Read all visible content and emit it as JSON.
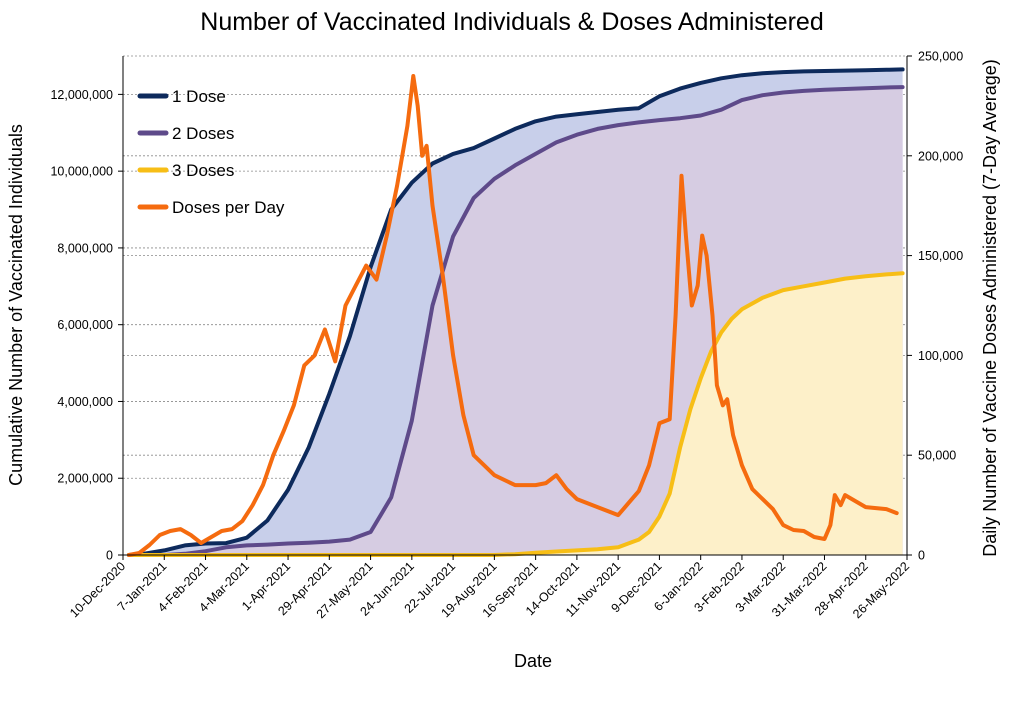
{
  "chart_data": {
    "type": "area",
    "title": "Number of Vaccinated Individuals & Doses Administered",
    "xlabel": "Date",
    "ylabel": "Cumulative Number of Vaccinated Individuals",
    "y2label": "Daily Number of Vaccine Doses Administered (7-Day Average)",
    "xlim": [
      "2020-12-10",
      "2022-05-26"
    ],
    "ylim": [
      0,
      13000000
    ],
    "y2lim": [
      0,
      250000
    ],
    "x_ticks": [
      "10-Dec-2020",
      "7-Jan-2021",
      "4-Feb-2021",
      "4-Mar-2021",
      "1-Apr-2021",
      "29-Apr-2021",
      "27-May-2021",
      "24-Jun-2021",
      "22-Jul-2021",
      "19-Aug-2021",
      "16-Sep-2021",
      "14-Oct-2021",
      "11-Nov-2021",
      "9-Dec-2021",
      "6-Jan-2022",
      "3-Feb-2022",
      "3-Mar-2022",
      "31-Mar-2022",
      "28-Apr-2022",
      "26-May-2022"
    ],
    "y_ticks": [
      "0",
      "2,000,000",
      "4,000,000",
      "6,000,000",
      "8,000,000",
      "10,000,000",
      "12,000,000"
    ],
    "y2_ticks": [
      "0",
      "50,000",
      "100,000",
      "150,000",
      "200,000",
      "250,000"
    ],
    "grid": "dashed horizontal",
    "legend_position": "top-left",
    "series": [
      {
        "name": "1 Dose",
        "axis": "left",
        "color": "#0d2a5c",
        "fill": "#c8cfea",
        "points": [
          [
            "2020-12-14",
            0
          ],
          [
            "2020-12-24",
            30000
          ],
          [
            "2021-01-07",
            120000
          ],
          [
            "2021-01-21",
            250000
          ],
          [
            "2021-02-04",
            300000
          ],
          [
            "2021-02-18",
            310000
          ],
          [
            "2021-03-04",
            450000
          ],
          [
            "2021-03-18",
            900000
          ],
          [
            "2021-04-01",
            1700000
          ],
          [
            "2021-04-15",
            2800000
          ],
          [
            "2021-04-29",
            4200000
          ],
          [
            "2021-05-13",
            5700000
          ],
          [
            "2021-05-27",
            7500000
          ],
          [
            "2021-06-10",
            9000000
          ],
          [
            "2021-06-24",
            9700000
          ],
          [
            "2021-07-08",
            10200000
          ],
          [
            "2021-07-22",
            10450000
          ],
          [
            "2021-08-05",
            10600000
          ],
          [
            "2021-08-19",
            10850000
          ],
          [
            "2021-09-02",
            11100000
          ],
          [
            "2021-09-16",
            11300000
          ],
          [
            "2021-09-30",
            11420000
          ],
          [
            "2021-10-14",
            11480000
          ],
          [
            "2021-10-28",
            11540000
          ],
          [
            "2021-11-11",
            11600000
          ],
          [
            "2021-11-25",
            11640000
          ],
          [
            "2021-12-09",
            11950000
          ],
          [
            "2021-12-23",
            12150000
          ],
          [
            "2022-01-06",
            12300000
          ],
          [
            "2022-01-20",
            12420000
          ],
          [
            "2022-02-03",
            12500000
          ],
          [
            "2022-02-17",
            12550000
          ],
          [
            "2022-03-03",
            12580000
          ],
          [
            "2022-03-17",
            12600000
          ],
          [
            "2022-03-31",
            12610000
          ],
          [
            "2022-04-14",
            12620000
          ],
          [
            "2022-04-28",
            12630000
          ],
          [
            "2022-05-12",
            12640000
          ],
          [
            "2022-05-23",
            12650000
          ]
        ]
      },
      {
        "name": "2 Doses",
        "axis": "left",
        "color": "#5e4a8a",
        "fill": "#d6cce2",
        "points": [
          [
            "2020-12-14",
            0
          ],
          [
            "2021-01-07",
            0
          ],
          [
            "2021-01-21",
            30000
          ],
          [
            "2021-02-04",
            100000
          ],
          [
            "2021-02-18",
            200000
          ],
          [
            "2021-03-04",
            250000
          ],
          [
            "2021-03-18",
            270000
          ],
          [
            "2021-04-01",
            300000
          ],
          [
            "2021-04-15",
            320000
          ],
          [
            "2021-04-29",
            350000
          ],
          [
            "2021-05-13",
            400000
          ],
          [
            "2021-05-27",
            600000
          ],
          [
            "2021-06-10",
            1500000
          ],
          [
            "2021-06-24",
            3500000
          ],
          [
            "2021-07-08",
            6500000
          ],
          [
            "2021-07-22",
            8300000
          ],
          [
            "2021-08-05",
            9300000
          ],
          [
            "2021-08-19",
            9800000
          ],
          [
            "2021-09-02",
            10150000
          ],
          [
            "2021-09-16",
            10450000
          ],
          [
            "2021-09-30",
            10750000
          ],
          [
            "2021-10-14",
            10950000
          ],
          [
            "2021-10-28",
            11100000
          ],
          [
            "2021-11-11",
            11200000
          ],
          [
            "2021-11-25",
            11270000
          ],
          [
            "2021-12-09",
            11330000
          ],
          [
            "2021-12-23",
            11380000
          ],
          [
            "2022-01-06",
            11450000
          ],
          [
            "2022-01-20",
            11600000
          ],
          [
            "2022-02-03",
            11850000
          ],
          [
            "2022-02-17",
            11980000
          ],
          [
            "2022-03-03",
            12050000
          ],
          [
            "2022-03-17",
            12090000
          ],
          [
            "2022-03-31",
            12120000
          ],
          [
            "2022-04-14",
            12140000
          ],
          [
            "2022-04-28",
            12160000
          ],
          [
            "2022-05-12",
            12180000
          ],
          [
            "2022-05-23",
            12190000
          ]
        ]
      },
      {
        "name": "3 Doses",
        "axis": "left",
        "color": "#f7be16",
        "fill": "#fdf0c9",
        "points": [
          [
            "2020-12-14",
            0
          ],
          [
            "2021-08-19",
            0
          ],
          [
            "2021-09-02",
            20000
          ],
          [
            "2021-09-16",
            60000
          ],
          [
            "2021-09-30",
            90000
          ],
          [
            "2021-10-14",
            120000
          ],
          [
            "2021-10-28",
            150000
          ],
          [
            "2021-11-11",
            200000
          ],
          [
            "2021-11-25",
            400000
          ],
          [
            "2021-12-02",
            600000
          ],
          [
            "2021-12-09",
            1000000
          ],
          [
            "2021-12-16",
            1600000
          ],
          [
            "2021-12-23",
            2800000
          ],
          [
            "2021-12-30",
            3800000
          ],
          [
            "2022-01-06",
            4600000
          ],
          [
            "2022-01-13",
            5300000
          ],
          [
            "2022-01-20",
            5800000
          ],
          [
            "2022-01-27",
            6150000
          ],
          [
            "2022-02-03",
            6400000
          ],
          [
            "2022-02-17",
            6700000
          ],
          [
            "2022-03-03",
            6900000
          ],
          [
            "2022-03-17",
            7000000
          ],
          [
            "2022-03-31",
            7100000
          ],
          [
            "2022-04-14",
            7200000
          ],
          [
            "2022-04-28",
            7260000
          ],
          [
            "2022-05-12",
            7310000
          ],
          [
            "2022-05-23",
            7340000
          ]
        ]
      },
      {
        "name": "Doses per Day",
        "axis": "right",
        "color": "#f56b0f",
        "points": [
          [
            "2020-12-14",
            0
          ],
          [
            "2020-12-21",
            1000
          ],
          [
            "2020-12-28",
            5000
          ],
          [
            "2021-01-04",
            10000
          ],
          [
            "2021-01-11",
            12000
          ],
          [
            "2021-01-18",
            13000
          ],
          [
            "2021-01-25",
            10000
          ],
          [
            "2021-02-01",
            6000
          ],
          [
            "2021-02-08",
            9000
          ],
          [
            "2021-02-15",
            12000
          ],
          [
            "2021-02-22",
            13000
          ],
          [
            "2021-03-01",
            17000
          ],
          [
            "2021-03-08",
            25000
          ],
          [
            "2021-03-15",
            35000
          ],
          [
            "2021-03-22",
            50000
          ],
          [
            "2021-03-29",
            62000
          ],
          [
            "2021-04-05",
            75000
          ],
          [
            "2021-04-12",
            95000
          ],
          [
            "2021-04-19",
            100000
          ],
          [
            "2021-04-26",
            113000
          ],
          [
            "2021-05-03",
            97000
          ],
          [
            "2021-05-10",
            125000
          ],
          [
            "2021-05-17",
            135000
          ],
          [
            "2021-05-24",
            145000
          ],
          [
            "2021-05-31",
            138000
          ],
          [
            "2021-06-07",
            160000
          ],
          [
            "2021-06-14",
            185000
          ],
          [
            "2021-06-21",
            215000
          ],
          [
            "2021-06-25",
            240000
          ],
          [
            "2021-06-28",
            225000
          ],
          [
            "2021-07-01",
            200000
          ],
          [
            "2021-07-04",
            205000
          ],
          [
            "2021-07-08",
            175000
          ],
          [
            "2021-07-15",
            140000
          ],
          [
            "2021-07-22",
            100000
          ],
          [
            "2021-07-29",
            70000
          ],
          [
            "2021-08-05",
            50000
          ],
          [
            "2021-08-19",
            40000
          ],
          [
            "2021-09-02",
            35000
          ],
          [
            "2021-09-16",
            35000
          ],
          [
            "2021-09-23",
            36000
          ],
          [
            "2021-09-30",
            40000
          ],
          [
            "2021-10-07",
            33000
          ],
          [
            "2021-10-14",
            28000
          ],
          [
            "2021-10-28",
            24000
          ],
          [
            "2021-11-11",
            20000
          ],
          [
            "2021-11-18",
            26000
          ],
          [
            "2021-11-25",
            32000
          ],
          [
            "2021-12-02",
            45000
          ],
          [
            "2021-12-09",
            66000
          ],
          [
            "2021-12-16",
            68000
          ],
          [
            "2021-12-20",
            120000
          ],
          [
            "2021-12-24",
            190000
          ],
          [
            "2021-12-27",
            160000
          ],
          [
            "2021-12-31",
            125000
          ],
          [
            "2022-01-04",
            135000
          ],
          [
            "2022-01-07",
            160000
          ],
          [
            "2022-01-10",
            150000
          ],
          [
            "2022-01-14",
            120000
          ],
          [
            "2022-01-17",
            85000
          ],
          [
            "2022-01-21",
            75000
          ],
          [
            "2022-01-24",
            78000
          ],
          [
            "2022-01-28",
            60000
          ],
          [
            "2022-02-03",
            45000
          ],
          [
            "2022-02-10",
            33000
          ],
          [
            "2022-02-17",
            28000
          ],
          [
            "2022-02-24",
            23000
          ],
          [
            "2022-03-03",
            15000
          ],
          [
            "2022-03-10",
            12500
          ],
          [
            "2022-03-17",
            12000
          ],
          [
            "2022-03-24",
            9000
          ],
          [
            "2022-03-31",
            8000
          ],
          [
            "2022-04-04",
            15000
          ],
          [
            "2022-04-07",
            30000
          ],
          [
            "2022-04-11",
            25000
          ],
          [
            "2022-04-14",
            30000
          ],
          [
            "2022-04-21",
            27000
          ],
          [
            "2022-04-28",
            24000
          ],
          [
            "2022-05-12",
            23000
          ],
          [
            "2022-05-19",
            21000
          ]
        ]
      }
    ]
  }
}
